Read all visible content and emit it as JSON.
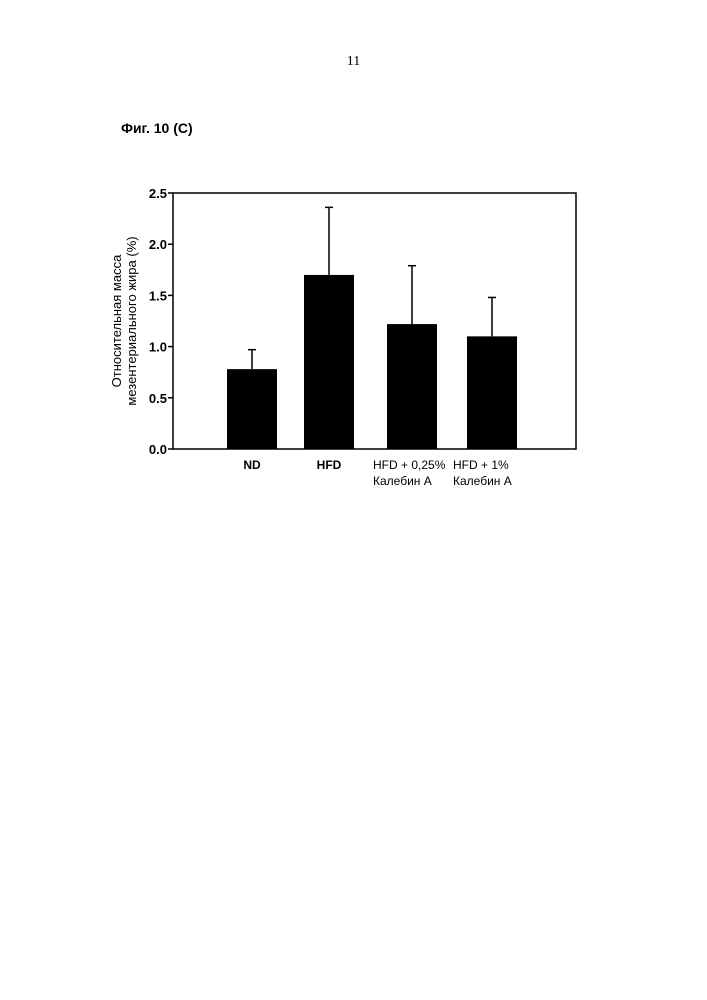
{
  "page": {
    "number": "11",
    "figure_label": "Фиг. 10 (С)"
  },
  "chart_data": {
    "type": "bar",
    "categories": [
      {
        "lines": [
          "ND"
        ],
        "bold": true
      },
      {
        "lines": [
          "HFD"
        ],
        "bold": true
      },
      {
        "lines": [
          "HFD + 0,25%",
          "Калебин А"
        ],
        "bold": false
      },
      {
        "lines": [
          "HFD + 1%",
          "Калебин А"
        ],
        "bold": false
      }
    ],
    "values": [
      0.78,
      1.7,
      1.22,
      1.1
    ],
    "errors": [
      0.19,
      0.66,
      0.57,
      0.38
    ],
    "ylabel_lines": [
      "Относительная масса",
      "мезентериального жира (%)"
    ],
    "ylim": [
      0.0,
      2.5
    ],
    "yticks": [
      "0.0",
      "0.5",
      "1.0",
      "1.5",
      "2.0",
      "2.5"
    ],
    "ytick_values": [
      0.0,
      0.5,
      1.0,
      1.5,
      2.0,
      2.5
    ],
    "bar_color": "#000000",
    "grid": false,
    "legend": "none"
  }
}
